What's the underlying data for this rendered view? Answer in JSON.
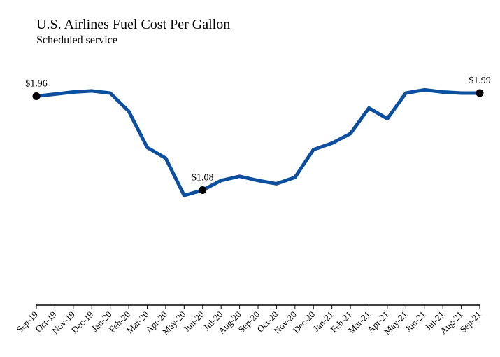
{
  "chart_data": {
    "type": "line",
    "title": "U.S. Airlines Fuel Cost Per Gallon",
    "subtitle": "Scheduled service",
    "categories": [
      "Sep-19",
      "Oct-19",
      "Nov-19",
      "Dec-19",
      "Jan-20",
      "Feb-20",
      "Mar-20",
      "Apr-20",
      "May-20",
      "Jun-20",
      "Jul-20",
      "Aug-20",
      "Sep-20",
      "Oct-20",
      "Nov-20",
      "Dec-20",
      "Jan-21",
      "Feb-21",
      "Mar-21",
      "Apr-21",
      "May-21",
      "Jun-21",
      "Jul-21",
      "Aug-21",
      "Sep-21"
    ],
    "values": [
      1.96,
      1.98,
      2.0,
      2.01,
      1.99,
      1.82,
      1.48,
      1.38,
      1.03,
      1.08,
      1.17,
      1.21,
      1.17,
      1.14,
      1.2,
      1.46,
      1.52,
      1.61,
      1.85,
      1.75,
      1.99,
      2.02,
      2.0,
      1.99,
      1.99
    ],
    "value_labels": [
      "$1.96",
      null,
      null,
      null,
      null,
      null,
      null,
      null,
      null,
      "$1.08",
      null,
      null,
      null,
      null,
      null,
      null,
      null,
      null,
      null,
      null,
      null,
      null,
      null,
      null,
      "$1.99"
    ],
    "color": "#0b4f9e",
    "ylim": [
      0,
      2.2
    ]
  }
}
